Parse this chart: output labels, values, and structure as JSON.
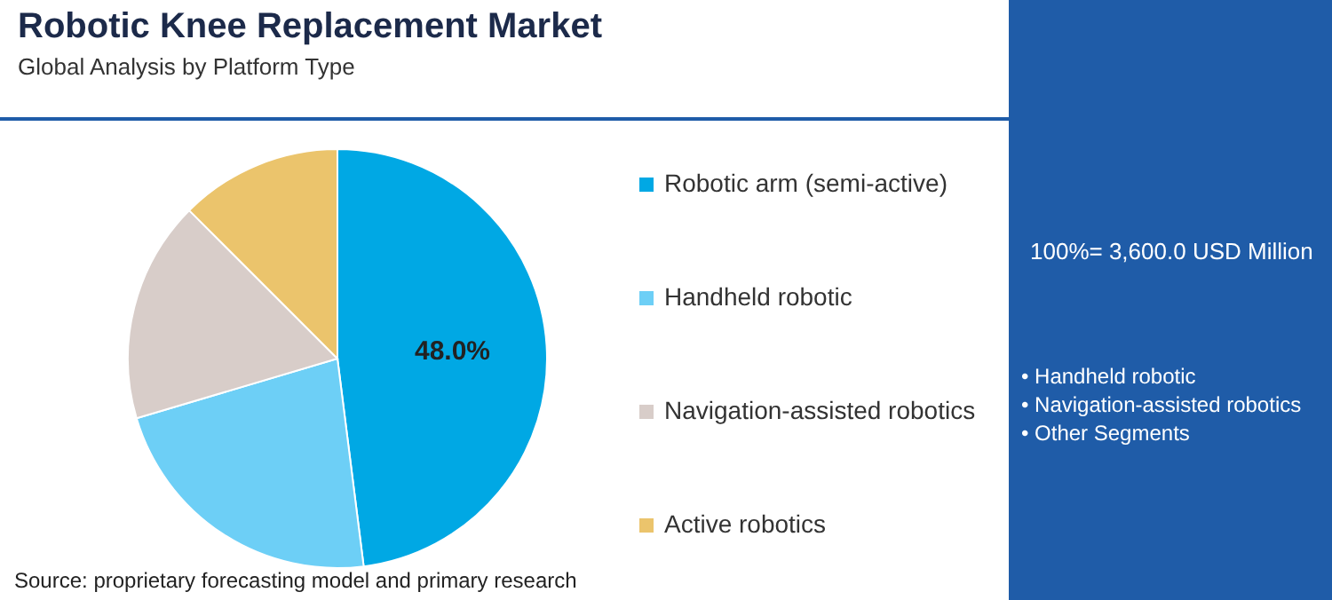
{
  "chart_data": {
    "type": "pie",
    "title": "Robotic Knee Replacement Market",
    "subtitle": "Global Analysis by Platform Type",
    "categories": [
      "Robotic arm (semi-active)",
      "Handheld robotic",
      "Navigation-assisted robotics",
      "Active robotics"
    ],
    "values": [
      48,
      22.4,
      17.1,
      12.5
    ],
    "colors": [
      "#00a8e4",
      "#6dcff6",
      "#d8cdc9",
      "#ebc46c"
    ],
    "value_labels": [
      "48.0%",
      null,
      null,
      null
    ],
    "legend": "right",
    "annotations": [
      "100%= 3,600.0 USD Million",
      "• Handheld robotic",
      "• Navigation-assisted robotics",
      "• Other Segments",
      "Source: proprietary forecasting model and primary research"
    ]
  }
}
